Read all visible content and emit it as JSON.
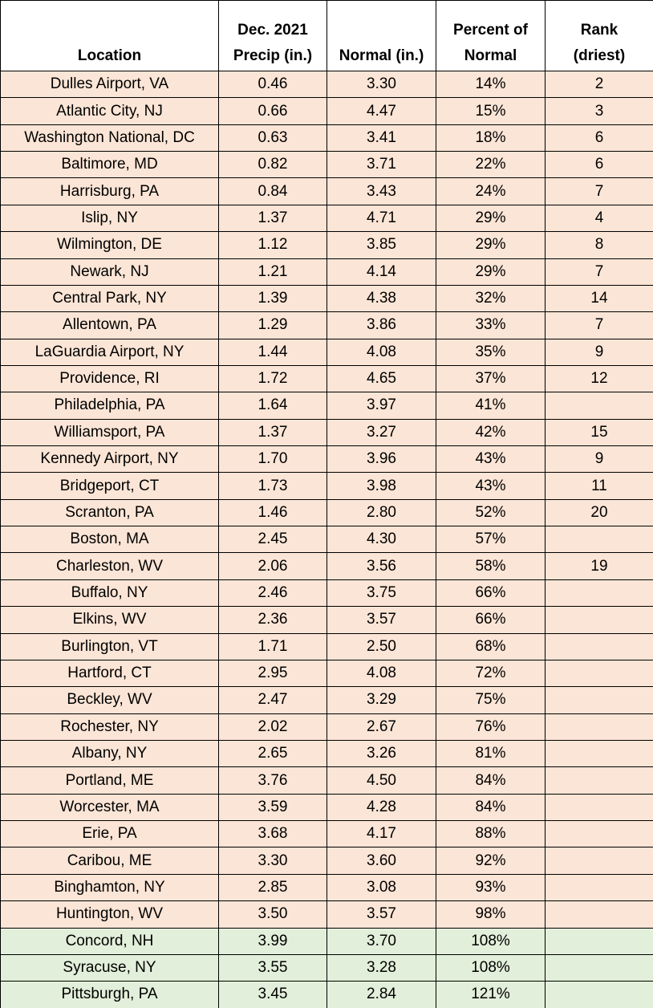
{
  "table": {
    "headers": [
      "Location",
      "Dec. 2021\nPrecip (in.)",
      "Normal (in.)",
      "Percent of\nNormal",
      "Rank\n(driest)"
    ],
    "rows": [
      [
        "Dulles Airport, VA",
        "0.46",
        "3.30",
        "14%",
        "2"
      ],
      [
        "Atlantic City, NJ",
        "0.66",
        "4.47",
        "15%",
        "3"
      ],
      [
        "Washington National, DC",
        "0.63",
        "3.41",
        "18%",
        "6"
      ],
      [
        "Baltimore, MD",
        "0.82",
        "3.71",
        "22%",
        "6"
      ],
      [
        "Harrisburg, PA",
        "0.84",
        "3.43",
        "24%",
        "7"
      ],
      [
        "Islip, NY",
        "1.37",
        "4.71",
        "29%",
        "4"
      ],
      [
        "Wilmington, DE",
        "1.12",
        "3.85",
        "29%",
        "8"
      ],
      [
        "Newark, NJ",
        "1.21",
        "4.14",
        "29%",
        "7"
      ],
      [
        "Central Park, NY",
        "1.39",
        "4.38",
        "32%",
        "14"
      ],
      [
        "Allentown, PA",
        "1.29",
        "3.86",
        "33%",
        "7"
      ],
      [
        "LaGuardia Airport, NY",
        "1.44",
        "4.08",
        "35%",
        "9"
      ],
      [
        "Providence, RI",
        "1.72",
        "4.65",
        "37%",
        "12"
      ],
      [
        "Philadelphia, PA",
        "1.64",
        "3.97",
        "41%",
        null
      ],
      [
        "Williamsport, PA",
        "1.37",
        "3.27",
        "42%",
        "15"
      ],
      [
        "Kennedy Airport, NY",
        "1.70",
        "3.96",
        "43%",
        "9"
      ],
      [
        "Bridgeport, CT",
        "1.73",
        "3.98",
        "43%",
        "11"
      ],
      [
        "Scranton, PA",
        "1.46",
        "2.80",
        "52%",
        "20"
      ],
      [
        "Boston, MA",
        "2.45",
        "4.30",
        "57%",
        null
      ],
      [
        "Charleston, WV",
        "2.06",
        "3.56",
        "58%",
        "19"
      ],
      [
        "Buffalo, NY",
        "2.46",
        "3.75",
        "66%",
        null
      ],
      [
        "Elkins, WV",
        "2.36",
        "3.57",
        "66%",
        null
      ],
      [
        "Burlington, VT",
        "1.71",
        "2.50",
        "68%",
        null
      ],
      [
        "Hartford, CT",
        "2.95",
        "4.08",
        "72%",
        null
      ],
      [
        "Beckley, WV",
        "2.47",
        "3.29",
        "75%",
        null
      ],
      [
        "Rochester, NY",
        "2.02",
        "2.67",
        "76%",
        null
      ],
      [
        "Albany, NY",
        "2.65",
        "3.26",
        "81%",
        null
      ],
      [
        "Portland, ME",
        "3.76",
        "4.50",
        "84%",
        null
      ],
      [
        "Worcester, MA",
        "3.59",
        "4.28",
        "84%",
        null
      ],
      [
        "Erie, PA",
        "3.68",
        "4.17",
        "88%",
        null
      ],
      [
        "Caribou, ME",
        "3.30",
        "3.60",
        "92%",
        null
      ],
      [
        "Binghamton, NY",
        "2.85",
        "3.08",
        "93%",
        null
      ],
      [
        "Huntington, WV",
        "3.50",
        "3.57",
        "98%",
        null
      ],
      [
        "Concord, NH",
        "3.99",
        "3.70",
        "108%",
        null
      ],
      [
        "Syracuse, NY",
        "3.55",
        "3.28",
        "108%",
        null
      ],
      [
        "Pittsburgh, PA",
        "3.45",
        "2.84",
        "121%",
        null
      ]
    ],
    "row_colors": [
      "#fbe5d6",
      "#fbe5d6",
      "#fbe5d6",
      "#fbe5d6",
      "#fbe5d6",
      "#fbe5d6",
      "#fbe5d6",
      "#fbe5d6",
      "#fbe5d6",
      "#fbe5d6",
      "#fbe5d6",
      "#fbe5d6",
      "#fbe5d6",
      "#fbe5d6",
      "#fbe5d6",
      "#fbe5d6",
      "#fbe5d6",
      "#fbe5d6",
      "#fbe5d6",
      "#fbe5d6",
      "#fbe5d6",
      "#fbe5d6",
      "#fbe5d6",
      "#fbe5d6",
      "#fbe5d6",
      "#fbe5d6",
      "#fbe5d6",
      "#fbe5d6",
      "#fbe5d6",
      "#fbe5d6",
      "#fbe5d6",
      "#fbe5d6",
      "#e2efda",
      "#e2efda",
      "#e2efda"
    ]
  }
}
